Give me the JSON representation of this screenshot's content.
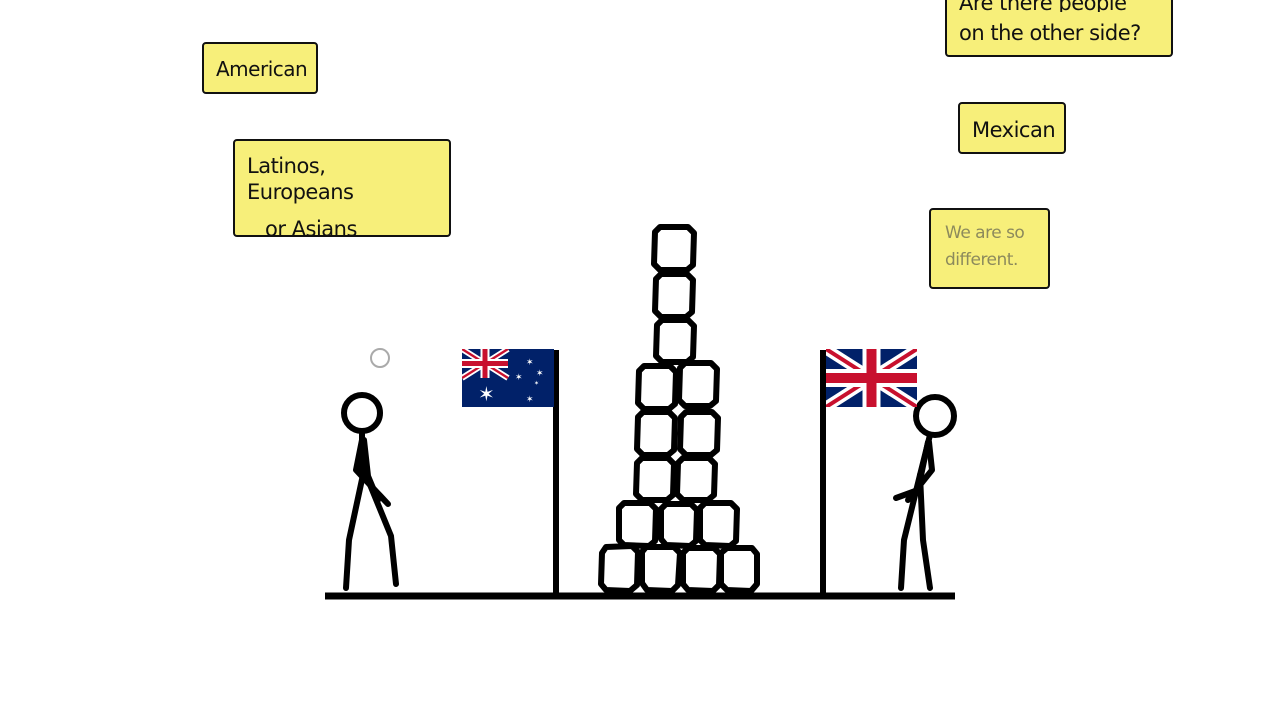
{
  "notes": {
    "american": "American",
    "latinos_line1": "Latinos, Europeans",
    "latinos_line2": "or Asians",
    "top_line1": "Are there people",
    "top_line2": "on the other side?",
    "mexican": "Mexican",
    "different_line1": "We are so",
    "different_line2": "different."
  },
  "flags": {
    "left": "australia-flag",
    "right": "union-jack-flag"
  },
  "colors": {
    "note_fill": "#f7ef7a",
    "ink": "#000000",
    "flag_blue": "#012169",
    "flag_red": "#C8102E"
  }
}
